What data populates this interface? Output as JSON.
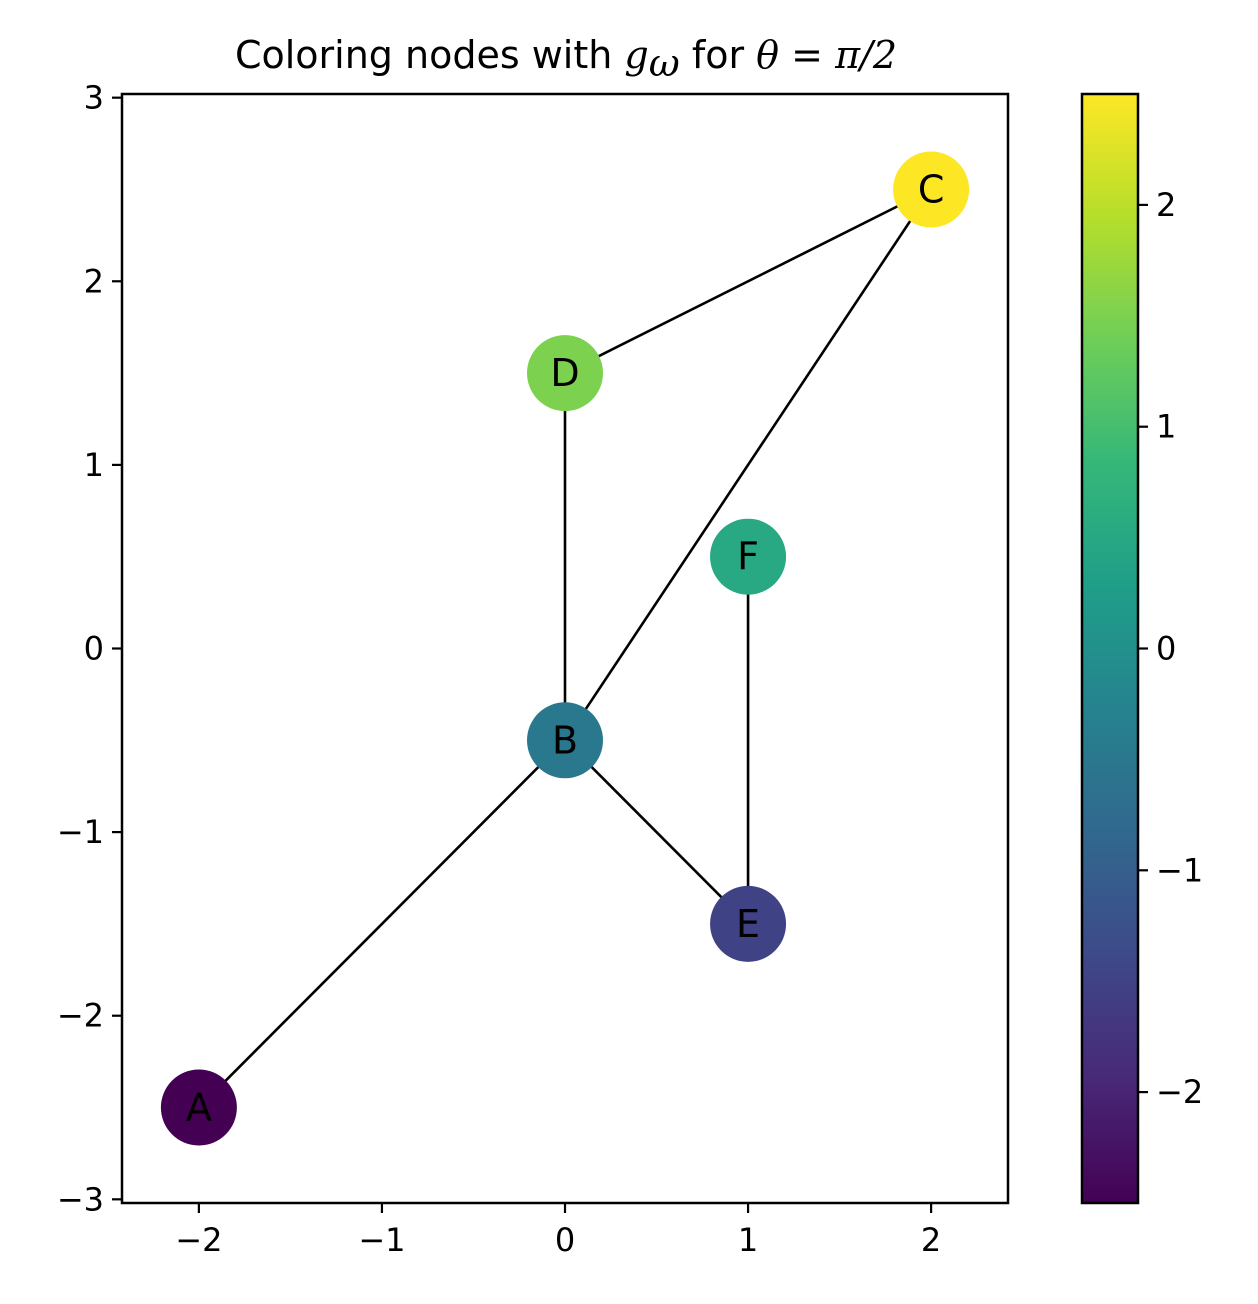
{
  "chart_data": {
    "type": "scatter",
    "subtype": "network-graph",
    "title": {
      "prefix": "Coloring nodes with ",
      "func": "g",
      "func_sub": "ω",
      "middle": " for  ",
      "param": "θ",
      "equals": " = ",
      "value": "π/2"
    },
    "xlim": [
      -2.42,
      2.42
    ],
    "ylim": [
      -3.02,
      3.02
    ],
    "xticks": [
      -2,
      -1,
      0,
      1,
      2
    ],
    "yticks": [
      -3,
      -2,
      -1,
      0,
      1,
      2,
      3
    ],
    "tick_labels": {
      "x": [
        "−2",
        "−1",
        "0",
        "1",
        "2"
      ],
      "y": [
        "−3",
        "−2",
        "−1",
        "0",
        "1",
        "2",
        "3"
      ]
    },
    "grid": false,
    "nodes": [
      {
        "id": "A",
        "x": -2,
        "y": -2.5,
        "value": -2.5
      },
      {
        "id": "B",
        "x": 0,
        "y": -0.5,
        "value": -0.5
      },
      {
        "id": "C",
        "x": 2,
        "y": 2.5,
        "value": 2.5
      },
      {
        "id": "D",
        "x": 0,
        "y": 1.5,
        "value": 1.5
      },
      {
        "id": "E",
        "x": 1,
        "y": -1.5,
        "value": -1.5
      },
      {
        "id": "F",
        "x": 1,
        "y": 0.5,
        "value": 0.5
      }
    ],
    "edges": [
      [
        "A",
        "B"
      ],
      [
        "B",
        "C"
      ],
      [
        "B",
        "D"
      ],
      [
        "B",
        "E"
      ],
      [
        "C",
        "D"
      ],
      [
        "E",
        "F"
      ]
    ],
    "colorbar": {
      "colormap": "viridis",
      "range": [
        -2.5,
        2.5
      ],
      "ticks": [
        -2,
        -1,
        0,
        1,
        2
      ],
      "tick_labels": [
        "−2",
        "−1",
        "0",
        "1",
        "2"
      ]
    },
    "colors": {
      "edge": "#000000",
      "viridis_stops": [
        "#440154",
        "#482878",
        "#3e4989",
        "#31688e",
        "#26828e",
        "#1f9e89",
        "#35b779",
        "#6ece58",
        "#b5de2b",
        "#fde725"
      ]
    }
  }
}
